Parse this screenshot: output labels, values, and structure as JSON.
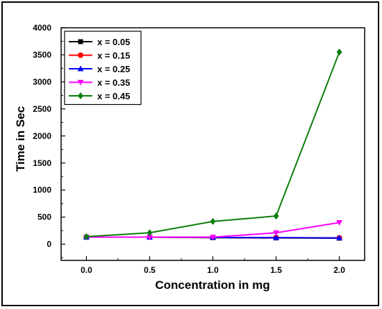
{
  "chart_data": {
    "type": "line",
    "title": "",
    "xlabel": "Concentration in mg",
    "ylabel": "Time in Sec",
    "x": [
      0.0,
      0.5,
      1.0,
      1.5,
      2.0
    ],
    "x_ticks": [
      "0.0",
      "0.5",
      "1.0",
      "1.5",
      "2.0"
    ],
    "xlim": [
      -0.2,
      2.2
    ],
    "ylim": [
      -300,
      4000
    ],
    "y_ticks": [
      0,
      500,
      1000,
      1500,
      2000,
      2500,
      3000,
      3500,
      4000
    ],
    "grid": false,
    "legend_position": "top-left",
    "series": [
      {
        "name": "x = 0.05",
        "color": "#000000",
        "marker": "square",
        "values": [
          130,
          130,
          120,
          115,
          110
        ]
      },
      {
        "name": "x = 0.15",
        "color": "#ff0000",
        "marker": "circle",
        "values": [
          130,
          130,
          125,
          120,
          115
        ]
      },
      {
        "name": "x = 0.25",
        "color": "#0000ff",
        "marker": "triangle-up",
        "values": [
          130,
          130,
          125,
          120,
          115
        ]
      },
      {
        "name": "x = 0.35",
        "color": "#ff00ff",
        "marker": "triangle-down",
        "values": [
          130,
          130,
          130,
          210,
          400
        ]
      },
      {
        "name": "x = 0.45",
        "color": "#0a7d0a",
        "marker": "diamond",
        "values": [
          140,
          210,
          420,
          520,
          3550
        ]
      }
    ]
  }
}
